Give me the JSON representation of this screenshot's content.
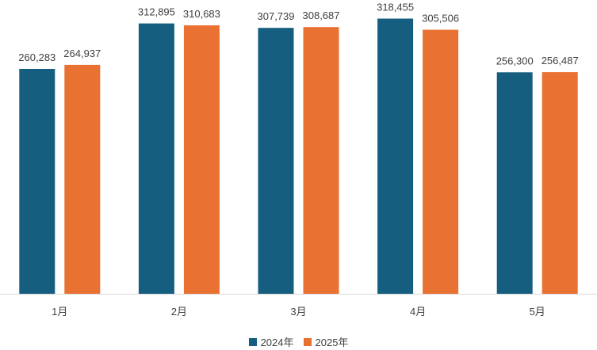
{
  "chart_data": {
    "type": "bar",
    "categories": [
      "1月",
      "2月",
      "3月",
      "4月",
      "5月"
    ],
    "series": [
      {
        "name": "2024年",
        "color": "#155e80",
        "values": [
          260283,
          312895,
          307739,
          318455,
          256300
        ]
      },
      {
        "name": "2025年",
        "color": "#e97132",
        "values": [
          264937,
          310683,
          308687,
          305506,
          256487
        ]
      }
    ],
    "ylim": [
      0,
      340000
    ],
    "grid": false,
    "legend_position": "bottom",
    "data_labels": true
  }
}
